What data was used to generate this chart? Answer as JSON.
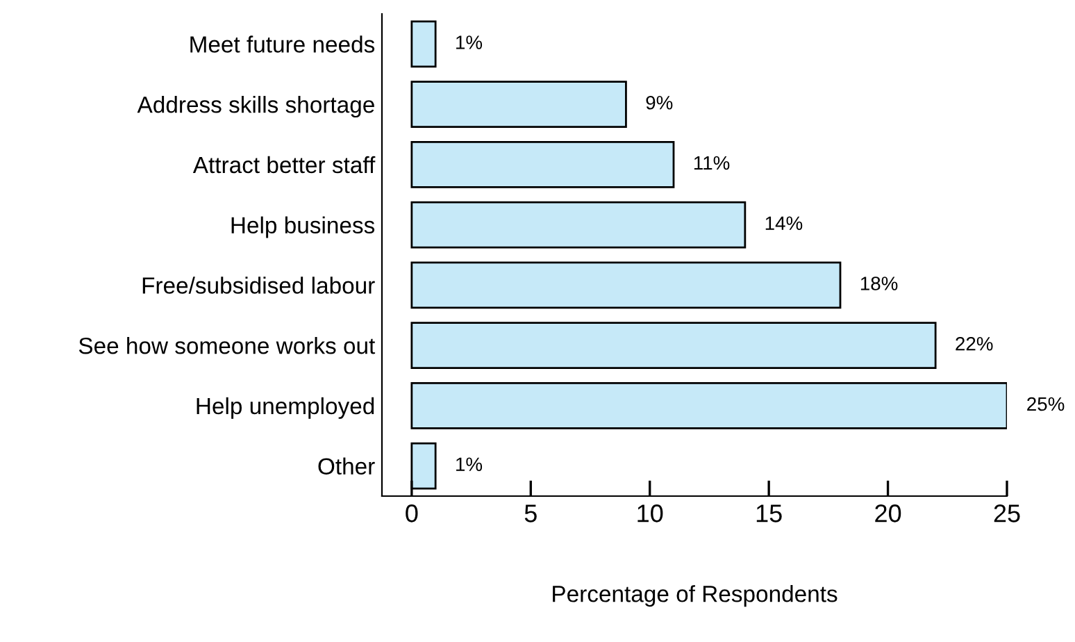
{
  "chart_data": {
    "type": "bar",
    "orientation": "horizontal",
    "xlabel": "Percentage of Respondents",
    "categories": [
      "Meet future needs",
      "Address skills shortage",
      "Attract better staff",
      "Help business",
      "Free/subsidised labour",
      "See how someone works out",
      "Help unemployed",
      "Other"
    ],
    "values": [
      1,
      9,
      11,
      14,
      18,
      22,
      25,
      1
    ],
    "value_labels": [
      "1%",
      "9%",
      "11%",
      "14%",
      "18%",
      "22%",
      "25%",
      "1%"
    ],
    "color": "#c6e9f8",
    "xlim": [
      -1.25,
      25
    ],
    "xticks": [
      0,
      5,
      10,
      15,
      20,
      25
    ],
    "grid": false,
    "legend": false
  }
}
